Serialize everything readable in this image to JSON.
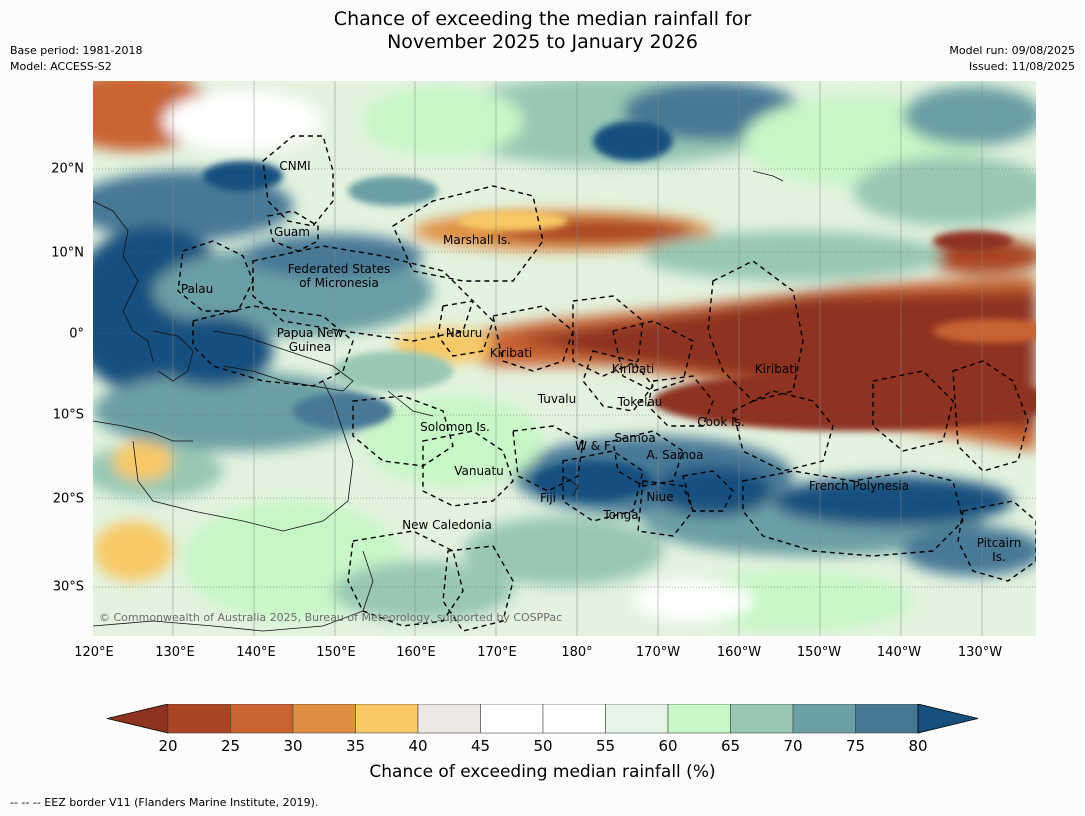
{
  "title": {
    "line1": "Chance of exceeding the median rainfall for",
    "line2": "November 2025 to January 2026"
  },
  "meta": {
    "base_period": "Base period: 1981-2018",
    "model": "Model: ACCESS-S2",
    "model_run": "Model run: 09/08/2025",
    "issued": "Issued: 11/08/2025"
  },
  "map": {
    "latitude_labels": [
      "20°N",
      "10°N",
      "0°",
      "10°S",
      "20°S",
      "30°S"
    ],
    "longitude_labels": [
      "120°E",
      "130°E",
      "140°E",
      "150°E",
      "160°E",
      "170°E",
      "180°",
      "170°W",
      "160°W",
      "150°W",
      "140°W",
      "130°W"
    ],
    "region_labels": [
      {
        "text": "CNMI"
      },
      {
        "text": "Guam"
      },
      {
        "text": "Marshall Is."
      },
      {
        "text": "Federated States\nof Micronesia"
      },
      {
        "text": "Palau"
      },
      {
        "text": "Papua New\nGuinea"
      },
      {
        "text": "Nauru"
      },
      {
        "text": "Kiribati"
      },
      {
        "text": "Kiribati"
      },
      {
        "text": "Kiribati"
      },
      {
        "text": "Tuvalu"
      },
      {
        "text": "Tokelau"
      },
      {
        "text": "Cook Is."
      },
      {
        "text": "Solomon Is."
      },
      {
        "text": "W & F"
      },
      {
        "text": "Samoa"
      },
      {
        "text": "A. Samoa"
      },
      {
        "text": "Vanuatu"
      },
      {
        "text": "Fiji"
      },
      {
        "text": "Niue"
      },
      {
        "text": "French Polynesia"
      },
      {
        "text": "Tonga"
      },
      {
        "text": "New Caledonia"
      },
      {
        "text": "Pitcairn\nIs."
      }
    ],
    "copyright": "© Commonwealth of Australia 2025, Bureau of Meteorology, supported by COSPPac"
  },
  "colorbar": {
    "ticks": [
      "20",
      "25",
      "30",
      "35",
      "40",
      "45",
      "50",
      "55",
      "60",
      "65",
      "70",
      "75",
      "80"
    ],
    "colors": [
      "#8e3320",
      "#ab4422",
      "#c96330",
      "#df8f42",
      "#f8c966",
      "#ece9e4",
      "#ffffff",
      "#ffffff",
      "#e7f5e6",
      "#c8f7c7",
      "#98c8b4",
      "#6a9fa5",
      "#467896",
      "#174f7f"
    ],
    "title": "Chance of exceeding median rainfall (%)"
  },
  "footer": "--  --  -- EEZ border V11 (Flanders Marine Institute, 2019)."
}
